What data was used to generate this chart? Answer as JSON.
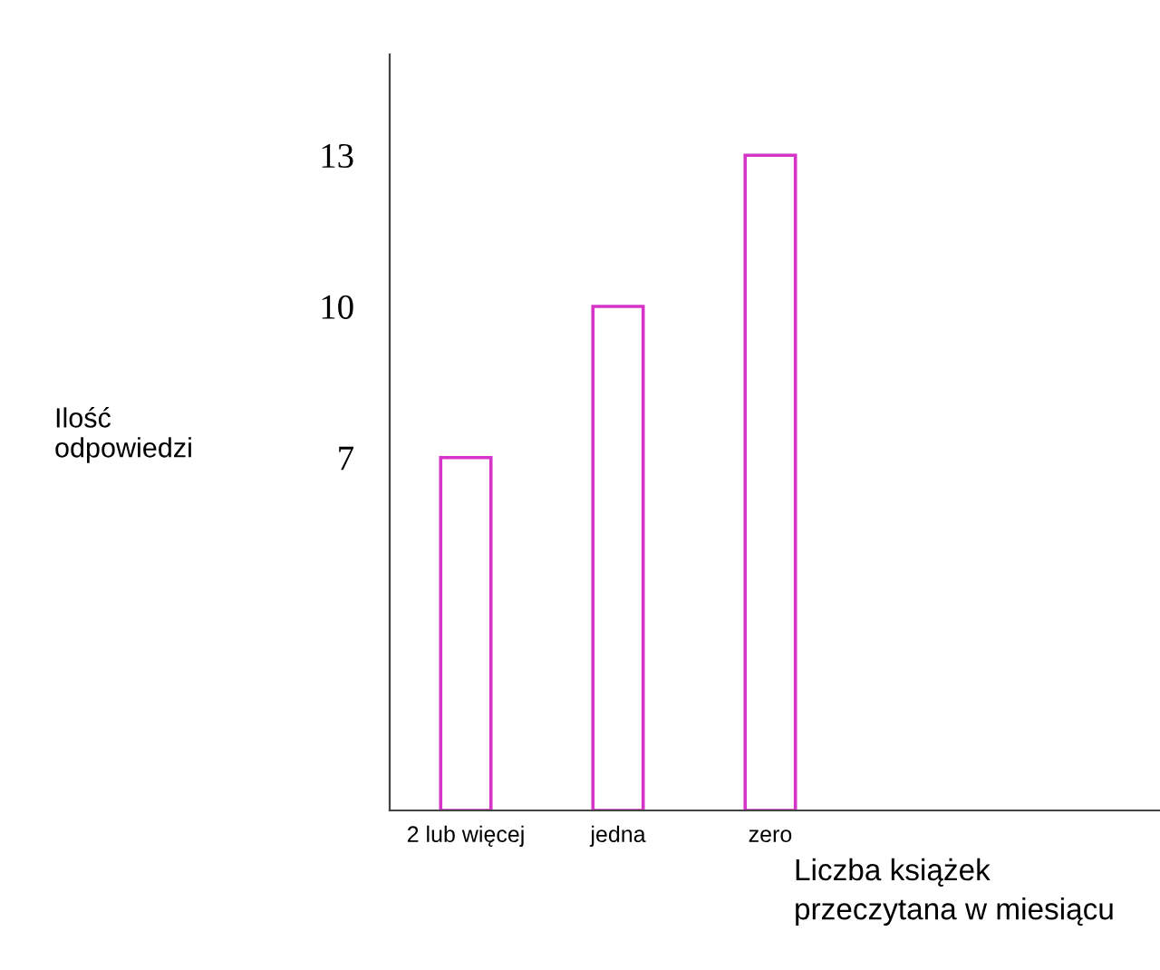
{
  "chart_data": {
    "type": "bar",
    "categories": [
      "2 lub więcej",
      "jedna",
      "zero"
    ],
    "values": [
      7,
      10,
      13
    ],
    "color": "#d633c8",
    "xlabel": "Liczba książek\nprzeczytana w miesiącu",
    "ylabel": "Ilość\nodpowiedzi",
    "ylim": [
      0,
      15
    ],
    "yticks": [
      7,
      10,
      13
    ],
    "grid": false
  }
}
